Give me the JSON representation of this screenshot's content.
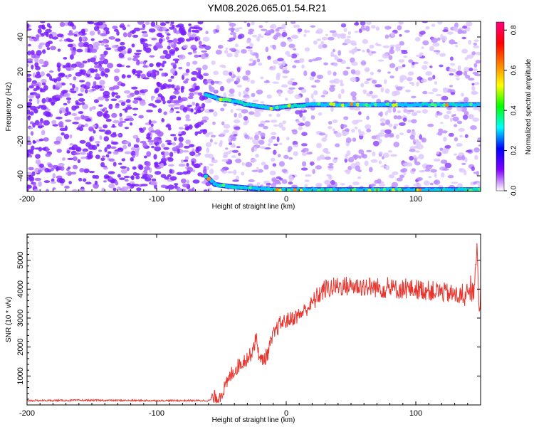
{
  "title": "YM08.2026.065.01.54.R21",
  "chart_data": [
    {
      "type": "heatmap",
      "name": "spectrogram",
      "xlabel": "Height of straight line (km)",
      "ylabel": "Frequency (Hz)",
      "xlim": [
        -200,
        150
      ],
      "ylim": [
        -49,
        49
      ],
      "x_ticks": [
        "-200",
        "-100",
        "0",
        "100"
      ],
      "y_ticks": [
        "40",
        "20",
        "0",
        "-20",
        "-40"
      ],
      "colorbar": {
        "label": "Normalized spectral amplitude",
        "range": [
          0.0,
          0.84
        ],
        "ticks": [
          "0.0",
          "0.2",
          "0.4",
          "0.6",
          "0.8"
        ],
        "colors": [
          "#ffffff",
          "#8000ff",
          "#0000ff",
          "#00ffff",
          "#00ff00",
          "#ffff00",
          "#ff8000",
          "#ff0000",
          "#ff0080"
        ]
      },
      "series": [
        {
          "name": "main line",
          "x": [
            -62,
            -50,
            -40,
            -30,
            -22,
            -10,
            0,
            20,
            50,
            80,
            100,
            120,
            150
          ],
          "y": [
            7,
            4,
            3,
            1,
            0,
            -1,
            0,
            1,
            1,
            1,
            1,
            1,
            1
          ]
        },
        {
          "name": "alias line",
          "x": [
            -62,
            -55,
            -45,
            -30,
            -10,
            0,
            50,
            100,
            150
          ],
          "y": [
            -40,
            -45,
            -46,
            -47,
            -48,
            -48,
            -48,
            -48,
            -48
          ]
        }
      ]
    },
    {
      "type": "line",
      "name": "snr",
      "xlabel": "Height of straight line (km)",
      "ylabel": "SNR (10 * v/v)",
      "xlim": [
        -200,
        150
      ],
      "ylim": [
        0,
        5900
      ],
      "x_ticks": [
        "-200",
        "-100",
        "0",
        "100"
      ],
      "y_ticks": [
        "5000",
        "4000",
        "3000",
        "2000",
        "1000"
      ],
      "color": "#e8352e",
      "series": [
        {
          "name": "SNR",
          "x": [
            -200,
            -150,
            -100,
            -60,
            -52,
            -47,
            -42,
            -36,
            -28,
            -23,
            -20,
            -15,
            -10,
            -5,
            0,
            10,
            20,
            25,
            30,
            40,
            50,
            60,
            80,
            100,
            120,
            140,
            145,
            147,
            149,
            150
          ],
          "y": [
            150,
            160,
            150,
            150,
            300,
            600,
            1100,
            1400,
            1700,
            2300,
            1500,
            1700,
            2400,
            2800,
            2900,
            3100,
            3500,
            3800,
            4000,
            4100,
            4100,
            4100,
            4000,
            4000,
            3900,
            3700,
            4000,
            5600,
            3000,
            4000
          ]
        }
      ]
    }
  ]
}
